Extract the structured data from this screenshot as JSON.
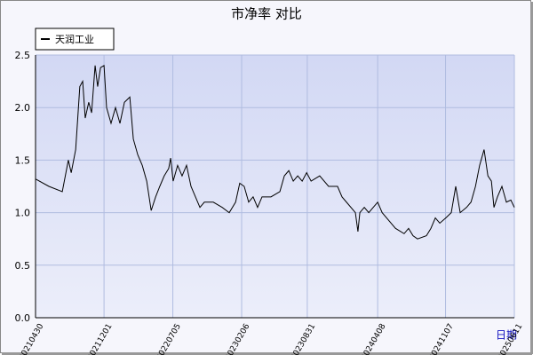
{
  "chart_data": {
    "type": "line",
    "title": "市净率  对比",
    "x_label": "日期",
    "x": [
      "20210430",
      "20210611",
      "20210723",
      "20210811",
      "20210820",
      "20210903",
      "20210916",
      "20210925",
      "20211003",
      "20211014",
      "20211023",
      "20211103",
      "20211111",
      "20211120",
      "20211201",
      "20211209",
      "20211223",
      "20220106",
      "20220120",
      "20220203",
      "20220220",
      "20220303",
      "20220317",
      "20220331",
      "20220414",
      "20220428",
      "20220512",
      "20220525",
      "20220608",
      "20220622",
      "20220628",
      "20220706",
      "20220720",
      "20220803",
      "20220817",
      "20220831",
      "20220914",
      "20220928",
      "20221012",
      "20221109",
      "20221207",
      "20221229",
      "20230118",
      "20230131",
      "20230214",
      "20230228",
      "20230314",
      "20230328",
      "20230411",
      "20230509",
      "20230606",
      "20230620",
      "20230704",
      "20230718",
      "20230801",
      "20230815",
      "20230829",
      "20230912",
      "20231009",
      "20231106",
      "20231204",
      "20231218",
      "20240101",
      "20240129",
      "20240206",
      "20240212",
      "20240226",
      "20240311",
      "20240325",
      "20240408",
      "20240422",
      "20240520",
      "20240603",
      "20240630",
      "20240714",
      "20240728",
      "20240811",
      "20240908",
      "20240922",
      "20241006",
      "20241020",
      "20241108",
      "20241125",
      "20241209",
      "20241223",
      "20250112",
      "20250126",
      "20250209",
      "20250222",
      "20250308",
      "20250320",
      "20250331",
      "20250408",
      "20250419",
      "20250503",
      "20250517",
      "20250531",
      "20250611"
    ],
    "series": [
      {
        "name": "天润工业",
        "color": "#000000",
        "values": [
          1.32,
          1.25,
          1.2,
          1.5,
          1.38,
          1.6,
          2.2,
          2.25,
          1.9,
          2.05,
          1.95,
          2.4,
          2.2,
          2.38,
          2.4,
          2.0,
          1.85,
          2.0,
          1.85,
          2.05,
          2.1,
          1.7,
          1.55,
          1.45,
          1.3,
          1.02,
          1.15,
          1.25,
          1.35,
          1.42,
          1.52,
          1.3,
          1.45,
          1.35,
          1.45,
          1.25,
          1.15,
          1.05,
          1.1,
          1.1,
          1.05,
          1.0,
          1.1,
          1.28,
          1.25,
          1.1,
          1.15,
          1.05,
          1.15,
          1.15,
          1.2,
          1.35,
          1.4,
          1.3,
          1.35,
          1.3,
          1.38,
          1.3,
          1.35,
          1.25,
          1.25,
          1.15,
          1.1,
          1.0,
          0.82,
          1.0,
          1.05,
          1.0,
          1.05,
          1.1,
          1.0,
          0.9,
          0.85,
          0.8,
          0.85,
          0.78,
          0.75,
          0.78,
          0.85,
          0.95,
          0.9,
          0.95,
          1.0,
          1.25,
          1.0,
          1.05,
          1.1,
          1.25,
          1.45,
          1.6,
          1.35,
          1.3,
          1.05,
          1.15,
          1.25,
          1.1,
          1.12,
          1.05
        ]
      }
    ],
    "xlim": [
      "20210430",
      "20250611"
    ],
    "xticks": [
      "20210430",
      "20211201",
      "20220705",
      "20230206",
      "20230831",
      "20240408",
      "20241107",
      "20250611"
    ],
    "ylim": [
      0,
      2.5
    ],
    "yticks": [
      {
        "value": 0,
        "label": "0.0"
      },
      0.5,
      {
        "value": 1,
        "label": "1.0"
      },
      1.5,
      {
        "value": 2,
        "label": "2.0"
      },
      2.5
    ],
    "grid": true,
    "legend": "top-left"
  }
}
